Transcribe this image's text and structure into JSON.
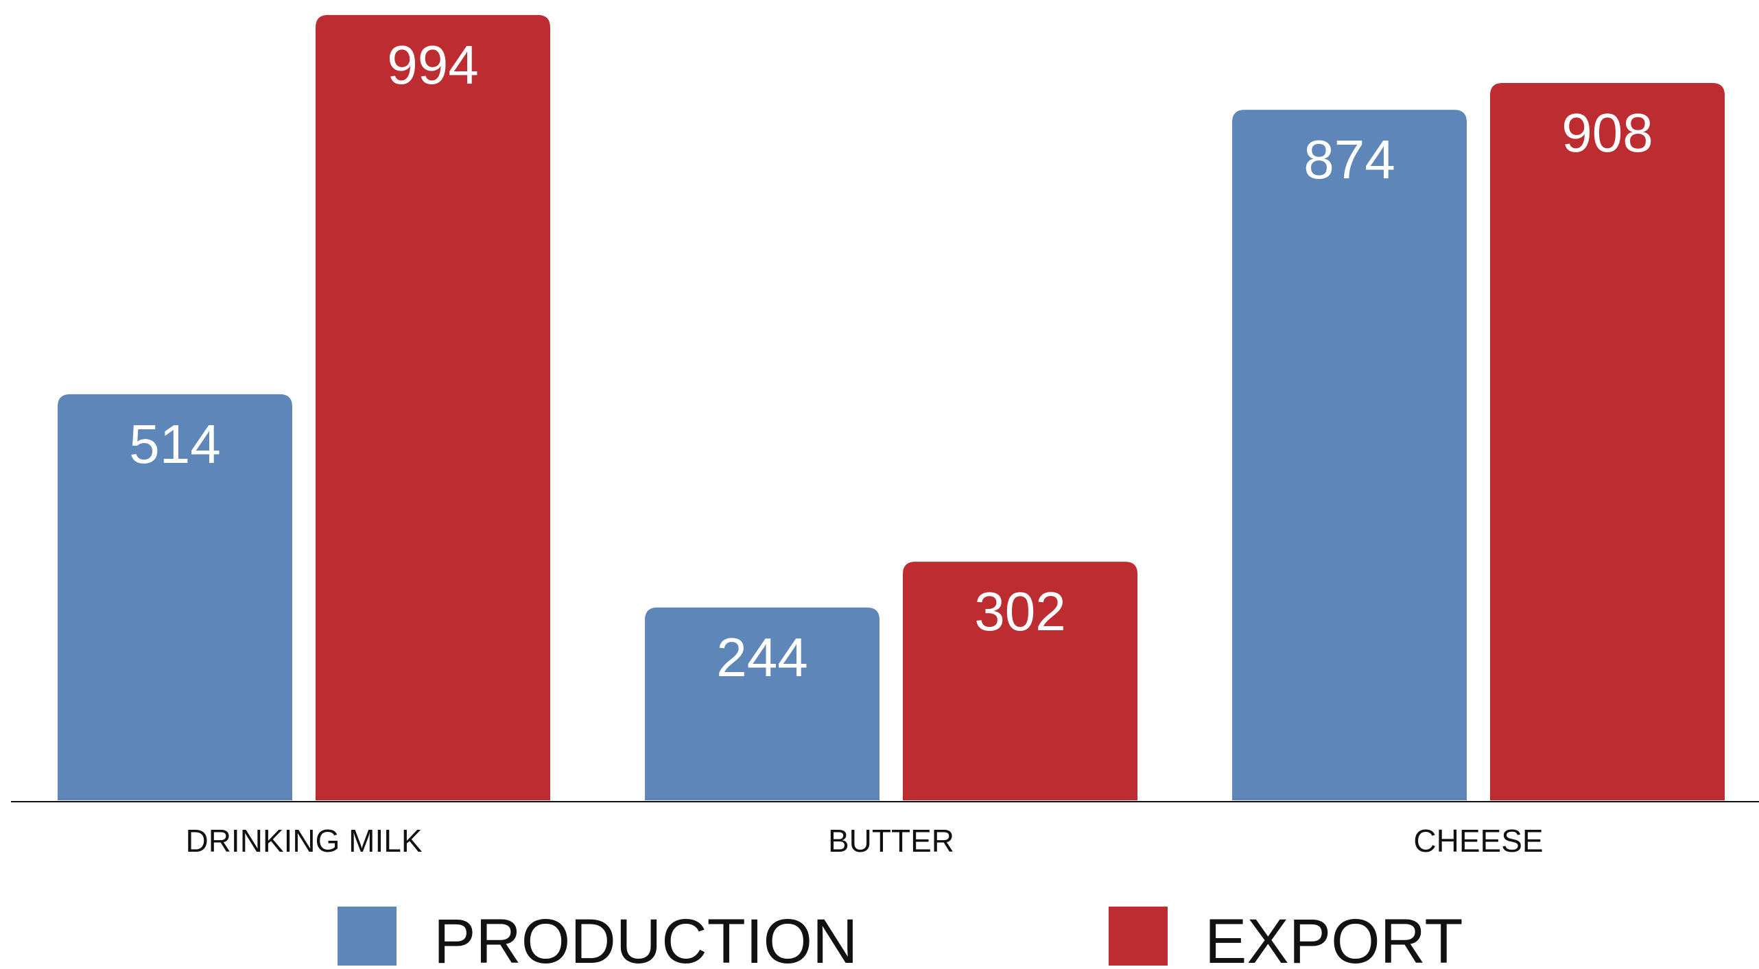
{
  "chart_data": {
    "type": "bar",
    "categories": [
      "DRINKING MILK",
      "BUTTER",
      "CHEESE"
    ],
    "series": [
      {
        "name": "PRODUCTION",
        "color": "#5f86b8",
        "values": [
          514,
          244,
          874
        ]
      },
      {
        "name": "EXPORT",
        "color": "#bc2c31",
        "values": [
          994,
          302,
          908
        ]
      }
    ],
    "title": "",
    "xlabel": "",
    "ylabel": "",
    "ylim": [
      0,
      1000
    ],
    "grid": false,
    "legend_position": "bottom",
    "data_labels": true
  }
}
